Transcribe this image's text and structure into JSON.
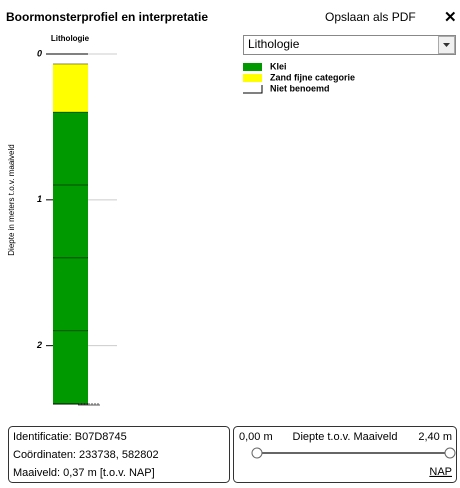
{
  "header": {
    "title": "Boormonsterprofiel en interpretatie",
    "export": "Opslaan als PDF",
    "close": "✕"
  },
  "profile": {
    "column_title": "Lithologie",
    "axis_label": "Diepte in meters t.o.v. maaiveld",
    "ylim": [
      0,
      2.4
    ],
    "yticks": [
      0,
      1,
      2
    ],
    "layers": [
      {
        "top": 0,
        "bottom": 0.07,
        "color": "#ffffff"
      },
      {
        "top": 0.07,
        "bottom": 0.4,
        "color": "#ffff00"
      },
      {
        "top": 0.4,
        "bottom": 0.9,
        "color": "#009900"
      },
      {
        "top": 0.9,
        "bottom": 1.4,
        "color": "#009900"
      },
      {
        "top": 1.4,
        "bottom": 1.9,
        "color": "#009900"
      },
      {
        "top": 1.9,
        "bottom": 2.4,
        "color": "#009900"
      }
    ]
  },
  "dropdown": {
    "selected": "Lithologie"
  },
  "legend": [
    {
      "name": "Klei",
      "color": "#009900"
    },
    {
      "name": "Zand fijne categorie",
      "color": "#ffff00"
    },
    {
      "name": "Niet benoemd",
      "color": "#ffffff"
    }
  ],
  "info": [
    "Identificatie: B07D8745",
    "Coördinaten: 233738, 582802",
    "Maaiveld: 0,37 m [t.o.v. NAP]"
  ],
  "depth_control": {
    "min_label": "0,00 m",
    "title": "Diepte t.o.v. Maaiveld",
    "max_label": "2,40 m",
    "nap": "NAP"
  }
}
